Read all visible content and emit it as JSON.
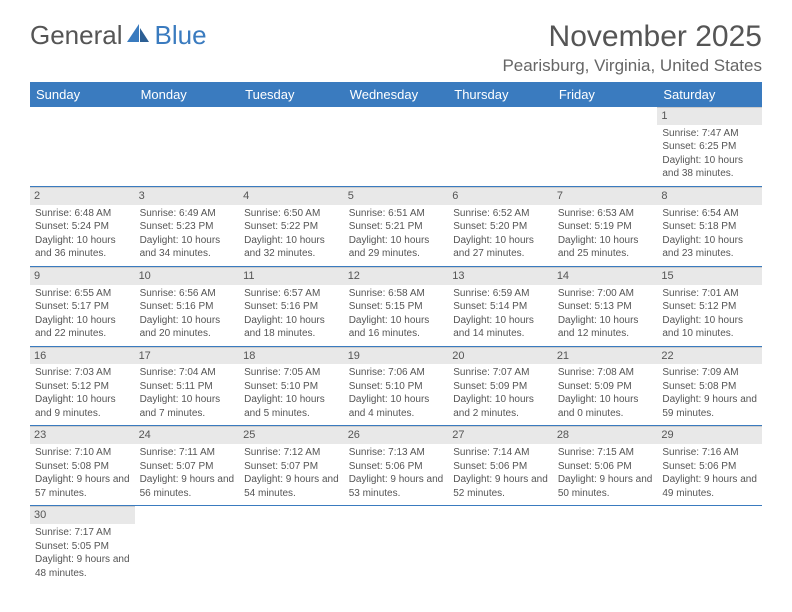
{
  "logo": {
    "part1": "General",
    "part2": "Blue"
  },
  "title": "November 2025",
  "location": "Pearisburg, Virginia, United States",
  "colors": {
    "headerBg": "#3a7bbf",
    "headerText": "#ffffff",
    "dayBg": "#e8e8e8",
    "text": "#555555"
  },
  "weekdays": [
    "Sunday",
    "Monday",
    "Tuesday",
    "Wednesday",
    "Thursday",
    "Friday",
    "Saturday"
  ],
  "weeks": [
    [
      null,
      null,
      null,
      null,
      null,
      null,
      {
        "n": "1",
        "sr": "Sunrise: 7:47 AM",
        "ss": "Sunset: 6:25 PM",
        "dl": "Daylight: 10 hours and 38 minutes."
      }
    ],
    [
      {
        "n": "2",
        "sr": "Sunrise: 6:48 AM",
        "ss": "Sunset: 5:24 PM",
        "dl": "Daylight: 10 hours and 36 minutes."
      },
      {
        "n": "3",
        "sr": "Sunrise: 6:49 AM",
        "ss": "Sunset: 5:23 PM",
        "dl": "Daylight: 10 hours and 34 minutes."
      },
      {
        "n": "4",
        "sr": "Sunrise: 6:50 AM",
        "ss": "Sunset: 5:22 PM",
        "dl": "Daylight: 10 hours and 32 minutes."
      },
      {
        "n": "5",
        "sr": "Sunrise: 6:51 AM",
        "ss": "Sunset: 5:21 PM",
        "dl": "Daylight: 10 hours and 29 minutes."
      },
      {
        "n": "6",
        "sr": "Sunrise: 6:52 AM",
        "ss": "Sunset: 5:20 PM",
        "dl": "Daylight: 10 hours and 27 minutes."
      },
      {
        "n": "7",
        "sr": "Sunrise: 6:53 AM",
        "ss": "Sunset: 5:19 PM",
        "dl": "Daylight: 10 hours and 25 minutes."
      },
      {
        "n": "8",
        "sr": "Sunrise: 6:54 AM",
        "ss": "Sunset: 5:18 PM",
        "dl": "Daylight: 10 hours and 23 minutes."
      }
    ],
    [
      {
        "n": "9",
        "sr": "Sunrise: 6:55 AM",
        "ss": "Sunset: 5:17 PM",
        "dl": "Daylight: 10 hours and 22 minutes."
      },
      {
        "n": "10",
        "sr": "Sunrise: 6:56 AM",
        "ss": "Sunset: 5:16 PM",
        "dl": "Daylight: 10 hours and 20 minutes."
      },
      {
        "n": "11",
        "sr": "Sunrise: 6:57 AM",
        "ss": "Sunset: 5:16 PM",
        "dl": "Daylight: 10 hours and 18 minutes."
      },
      {
        "n": "12",
        "sr": "Sunrise: 6:58 AM",
        "ss": "Sunset: 5:15 PM",
        "dl": "Daylight: 10 hours and 16 minutes."
      },
      {
        "n": "13",
        "sr": "Sunrise: 6:59 AM",
        "ss": "Sunset: 5:14 PM",
        "dl": "Daylight: 10 hours and 14 minutes."
      },
      {
        "n": "14",
        "sr": "Sunrise: 7:00 AM",
        "ss": "Sunset: 5:13 PM",
        "dl": "Daylight: 10 hours and 12 minutes."
      },
      {
        "n": "15",
        "sr": "Sunrise: 7:01 AM",
        "ss": "Sunset: 5:12 PM",
        "dl": "Daylight: 10 hours and 10 minutes."
      }
    ],
    [
      {
        "n": "16",
        "sr": "Sunrise: 7:03 AM",
        "ss": "Sunset: 5:12 PM",
        "dl": "Daylight: 10 hours and 9 minutes."
      },
      {
        "n": "17",
        "sr": "Sunrise: 7:04 AM",
        "ss": "Sunset: 5:11 PM",
        "dl": "Daylight: 10 hours and 7 minutes."
      },
      {
        "n": "18",
        "sr": "Sunrise: 7:05 AM",
        "ss": "Sunset: 5:10 PM",
        "dl": "Daylight: 10 hours and 5 minutes."
      },
      {
        "n": "19",
        "sr": "Sunrise: 7:06 AM",
        "ss": "Sunset: 5:10 PM",
        "dl": "Daylight: 10 hours and 4 minutes."
      },
      {
        "n": "20",
        "sr": "Sunrise: 7:07 AM",
        "ss": "Sunset: 5:09 PM",
        "dl": "Daylight: 10 hours and 2 minutes."
      },
      {
        "n": "21",
        "sr": "Sunrise: 7:08 AM",
        "ss": "Sunset: 5:09 PM",
        "dl": "Daylight: 10 hours and 0 minutes."
      },
      {
        "n": "22",
        "sr": "Sunrise: 7:09 AM",
        "ss": "Sunset: 5:08 PM",
        "dl": "Daylight: 9 hours and 59 minutes."
      }
    ],
    [
      {
        "n": "23",
        "sr": "Sunrise: 7:10 AM",
        "ss": "Sunset: 5:08 PM",
        "dl": "Daylight: 9 hours and 57 minutes."
      },
      {
        "n": "24",
        "sr": "Sunrise: 7:11 AM",
        "ss": "Sunset: 5:07 PM",
        "dl": "Daylight: 9 hours and 56 minutes."
      },
      {
        "n": "25",
        "sr": "Sunrise: 7:12 AM",
        "ss": "Sunset: 5:07 PM",
        "dl": "Daylight: 9 hours and 54 minutes."
      },
      {
        "n": "26",
        "sr": "Sunrise: 7:13 AM",
        "ss": "Sunset: 5:06 PM",
        "dl": "Daylight: 9 hours and 53 minutes."
      },
      {
        "n": "27",
        "sr": "Sunrise: 7:14 AM",
        "ss": "Sunset: 5:06 PM",
        "dl": "Daylight: 9 hours and 52 minutes."
      },
      {
        "n": "28",
        "sr": "Sunrise: 7:15 AM",
        "ss": "Sunset: 5:06 PM",
        "dl": "Daylight: 9 hours and 50 minutes."
      },
      {
        "n": "29",
        "sr": "Sunrise: 7:16 AM",
        "ss": "Sunset: 5:06 PM",
        "dl": "Daylight: 9 hours and 49 minutes."
      }
    ],
    [
      {
        "n": "30",
        "sr": "Sunrise: 7:17 AM",
        "ss": "Sunset: 5:05 PM",
        "dl": "Daylight: 9 hours and 48 minutes."
      },
      null,
      null,
      null,
      null,
      null,
      null
    ]
  ]
}
